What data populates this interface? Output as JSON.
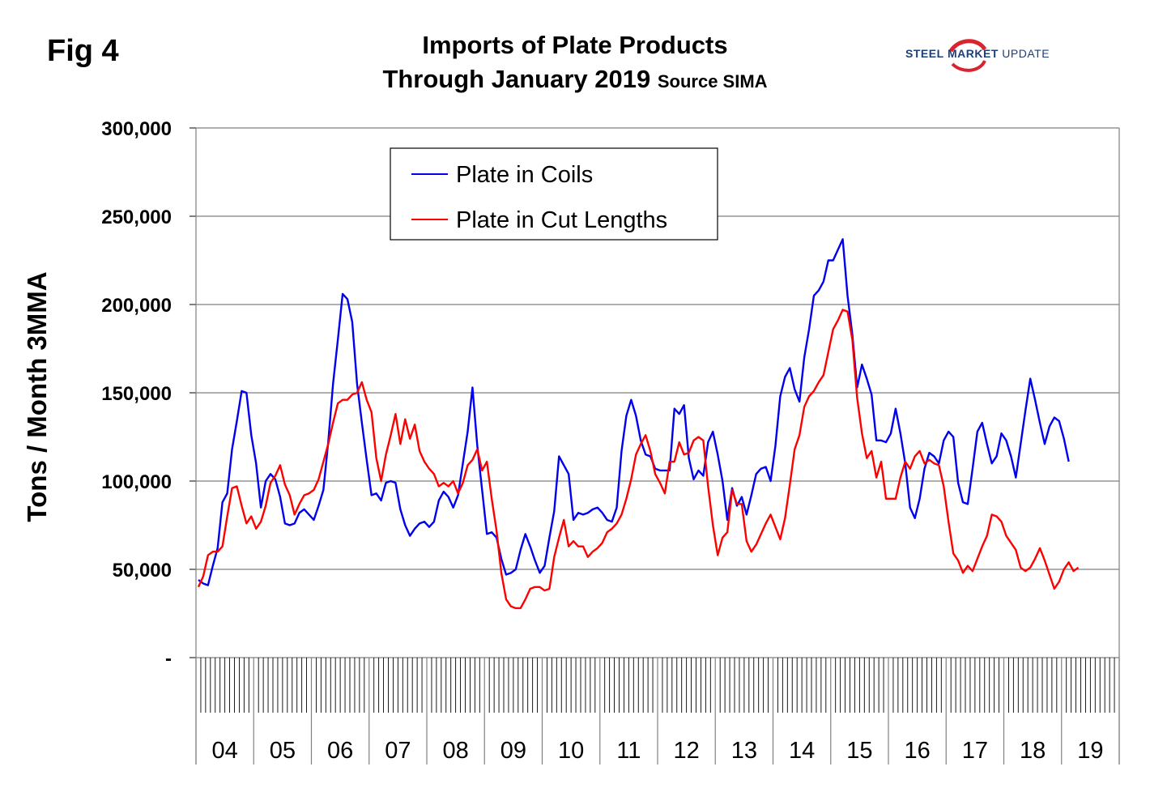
{
  "figure_label": "Fig 4",
  "title_line1": "Imports of Plate Products",
  "title_line2": "Through January 2019",
  "source": "Source SIMA",
  "logo": {
    "word1": "STEEL",
    "word2": "MARKET",
    "word3": "UPDATE",
    "accent": "#d9232e",
    "brand": "#1f3f7a"
  },
  "chart_data": {
    "type": "line",
    "ylabel": "Tons / Month 3MMA",
    "ylim": [
      0,
      300000
    ],
    "yticks": [
      {
        "value": 0,
        "label": "-"
      },
      {
        "value": 50000,
        "label": "50,000"
      },
      {
        "value": 100000,
        "label": "100,000"
      },
      {
        "value": 150000,
        "label": "150,000"
      },
      {
        "value": 200000,
        "label": "200,000"
      },
      {
        "value": 250000,
        "label": "250,000"
      },
      {
        "value": 300000,
        "label": "300,000"
      }
    ],
    "years": [
      "04",
      "05",
      "06",
      "07",
      "08",
      "09",
      "10",
      "11",
      "12",
      "13",
      "14",
      "15",
      "16",
      "17",
      "18",
      "19"
    ],
    "x_start": "2004-01",
    "months_per_year": 12,
    "grid": true,
    "legend_position": "top-left",
    "series": [
      {
        "name": "Plate in Coils",
        "color": "#0000ee",
        "values": [
          44000,
          42000,
          41000,
          52000,
          62000,
          88000,
          93000,
          118000,
          134000,
          151000,
          150000,
          126000,
          110000,
          85000,
          100000,
          104000,
          101000,
          91000,
          76000,
          75000,
          76000,
          82000,
          84000,
          81000,
          78000,
          86000,
          95000,
          122000,
          155000,
          180000,
          206000,
          203000,
          190000,
          155000,
          133000,
          112000,
          92000,
          93000,
          89000,
          99000,
          100000,
          99000,
          84000,
          75000,
          69000,
          73000,
          76000,
          77000,
          74000,
          77000,
          89000,
          94000,
          91000,
          85000,
          92000,
          110000,
          128000,
          153000,
          120000,
          95000,
          70000,
          71000,
          68000,
          56000,
          47000,
          48000,
          50000,
          61000,
          70000,
          63000,
          55000,
          48000,
          52000,
          68000,
          83000,
          114000,
          109000,
          104000,
          78000,
          82000,
          81000,
          82000,
          84000,
          85000,
          82000,
          78000,
          77000,
          85000,
          117000,
          137000,
          146000,
          137000,
          123000,
          115000,
          114000,
          107000,
          106000,
          106000,
          106000,
          141000,
          138000,
          143000,
          113000,
          101000,
          106000,
          103000,
          122000,
          128000,
          115000,
          100000,
          78000,
          96000,
          86000,
          91000,
          81000,
          92000,
          104000,
          107000,
          108000,
          100000,
          120000,
          148000,
          159000,
          164000,
          152000,
          145000,
          170000,
          186000,
          205000,
          208000,
          213000,
          225000,
          225000,
          231000,
          237000,
          205000,
          183000,
          153000,
          166000,
          158000,
          149000,
          123000,
          123000,
          122000,
          127000,
          141000,
          127000,
          110000,
          85000,
          79000,
          90000,
          107000,
          116000,
          114000,
          110000,
          123000,
          128000,
          125000,
          99000,
          88000,
          87000,
          107000,
          128000,
          133000,
          121000,
          110000,
          114000,
          127000,
          123000,
          114000,
          102000,
          121000,
          140000,
          158000,
          146000,
          133000,
          121000,
          131000,
          136000,
          134000,
          124000,
          111000
        ]
      },
      {
        "name": "Plate in Cut Lengths",
        "color": "#ff0000",
        "values": [
          40000,
          46000,
          58000,
          60000,
          60000,
          63000,
          80000,
          96000,
          97000,
          86000,
          76000,
          80000,
          73000,
          77000,
          86000,
          99000,
          103000,
          109000,
          98000,
          92000,
          81000,
          87000,
          92000,
          93000,
          95000,
          101000,
          111000,
          121000,
          133000,
          144000,
          146000,
          146000,
          149000,
          150000,
          156000,
          146000,
          139000,
          113000,
          100000,
          115000,
          126000,
          138000,
          121000,
          135000,
          124000,
          132000,
          117000,
          111000,
          107000,
          104000,
          97000,
          99000,
          97000,
          100000,
          93000,
          99000,
          109000,
          112000,
          118000,
          106000,
          111000,
          90000,
          72000,
          48000,
          33000,
          29000,
          28000,
          28000,
          33000,
          39000,
          40000,
          40000,
          38000,
          39000,
          57000,
          68000,
          78000,
          63000,
          66000,
          63000,
          63000,
          57000,
          60000,
          62000,
          65000,
          71000,
          73000,
          76000,
          81000,
          90000,
          101000,
          115000,
          121000,
          126000,
          117000,
          104000,
          99000,
          93000,
          111000,
          111000,
          122000,
          115000,
          116000,
          123000,
          125000,
          123000,
          97000,
          75000,
          58000,
          68000,
          71000,
          95000,
          87000,
          87000,
          66000,
          60000,
          64000,
          70000,
          76000,
          81000,
          74000,
          67000,
          79000,
          98000,
          118000,
          126000,
          142000,
          148000,
          151000,
          156000,
          160000,
          173000,
          186000,
          191000,
          197000,
          196000,
          180000,
          147000,
          127000,
          113000,
          117000,
          102000,
          111000,
          90000,
          90000,
          90000,
          102000,
          111000,
          107000,
          114000,
          117000,
          110000,
          112000,
          110000,
          109000,
          97000,
          77000,
          59000,
          55000,
          48000,
          52000,
          49000,
          56000,
          63000,
          69000,
          81000,
          80000,
          77000,
          69000,
          65000,
          61000,
          51000,
          49000,
          51000,
          56000,
          62000,
          55000,
          47000,
          39000,
          43000,
          50000,
          54000,
          49000,
          51000
        ]
      }
    ]
  }
}
